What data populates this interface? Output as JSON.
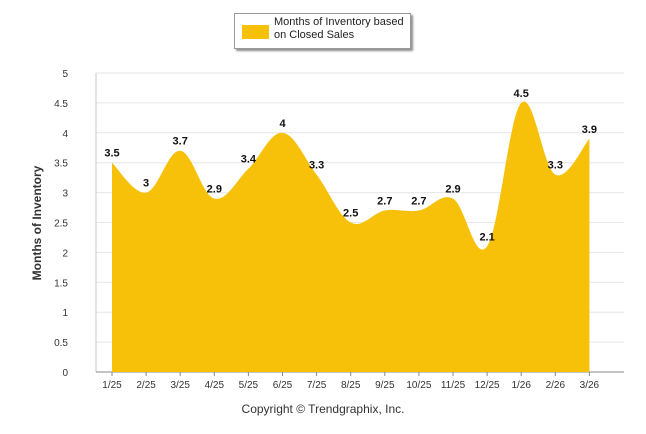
{
  "chart_data": {
    "type": "area",
    "categories": [
      "1/25",
      "2/25",
      "3/25",
      "4/25",
      "5/25",
      "6/25",
      "7/25",
      "8/25",
      "9/25",
      "10/25",
      "11/25",
      "12/25",
      "1/26",
      "2/26",
      "3/26"
    ],
    "series": [
      {
        "name": "Months of Inventory based on Closed Sales",
        "values": [
          3.5,
          3,
          3.7,
          2.9,
          3.4,
          4,
          3.3,
          2.5,
          2.7,
          2.7,
          2.9,
          2.1,
          4.5,
          3.3,
          3.9
        ],
        "color": "#F7C10A"
      }
    ],
    "data_labels": [
      "3.5",
      "3",
      "3.7",
      "2.9",
      "3.4",
      "4",
      "3.3",
      "2.5",
      "2.7",
      "2.7",
      "2.9",
      "2.1",
      "4.5",
      "3.3",
      "3.9"
    ],
    "ylabel": "Months of Inventory",
    "xlabel": "",
    "ylim": [
      0,
      5
    ],
    "yticks": [
      "0",
      "0.5",
      "1",
      "1.5",
      "2",
      "2.5",
      "3",
      "3.5",
      "4",
      "4.5",
      "5"
    ],
    "grid": true,
    "legend": "top-center"
  },
  "legend": {
    "label": "Months of Inventory based on Closed Sales",
    "color": "#F7C10A"
  },
  "footer": {
    "copyright": "Copyright © Trendgraphix, Inc."
  }
}
